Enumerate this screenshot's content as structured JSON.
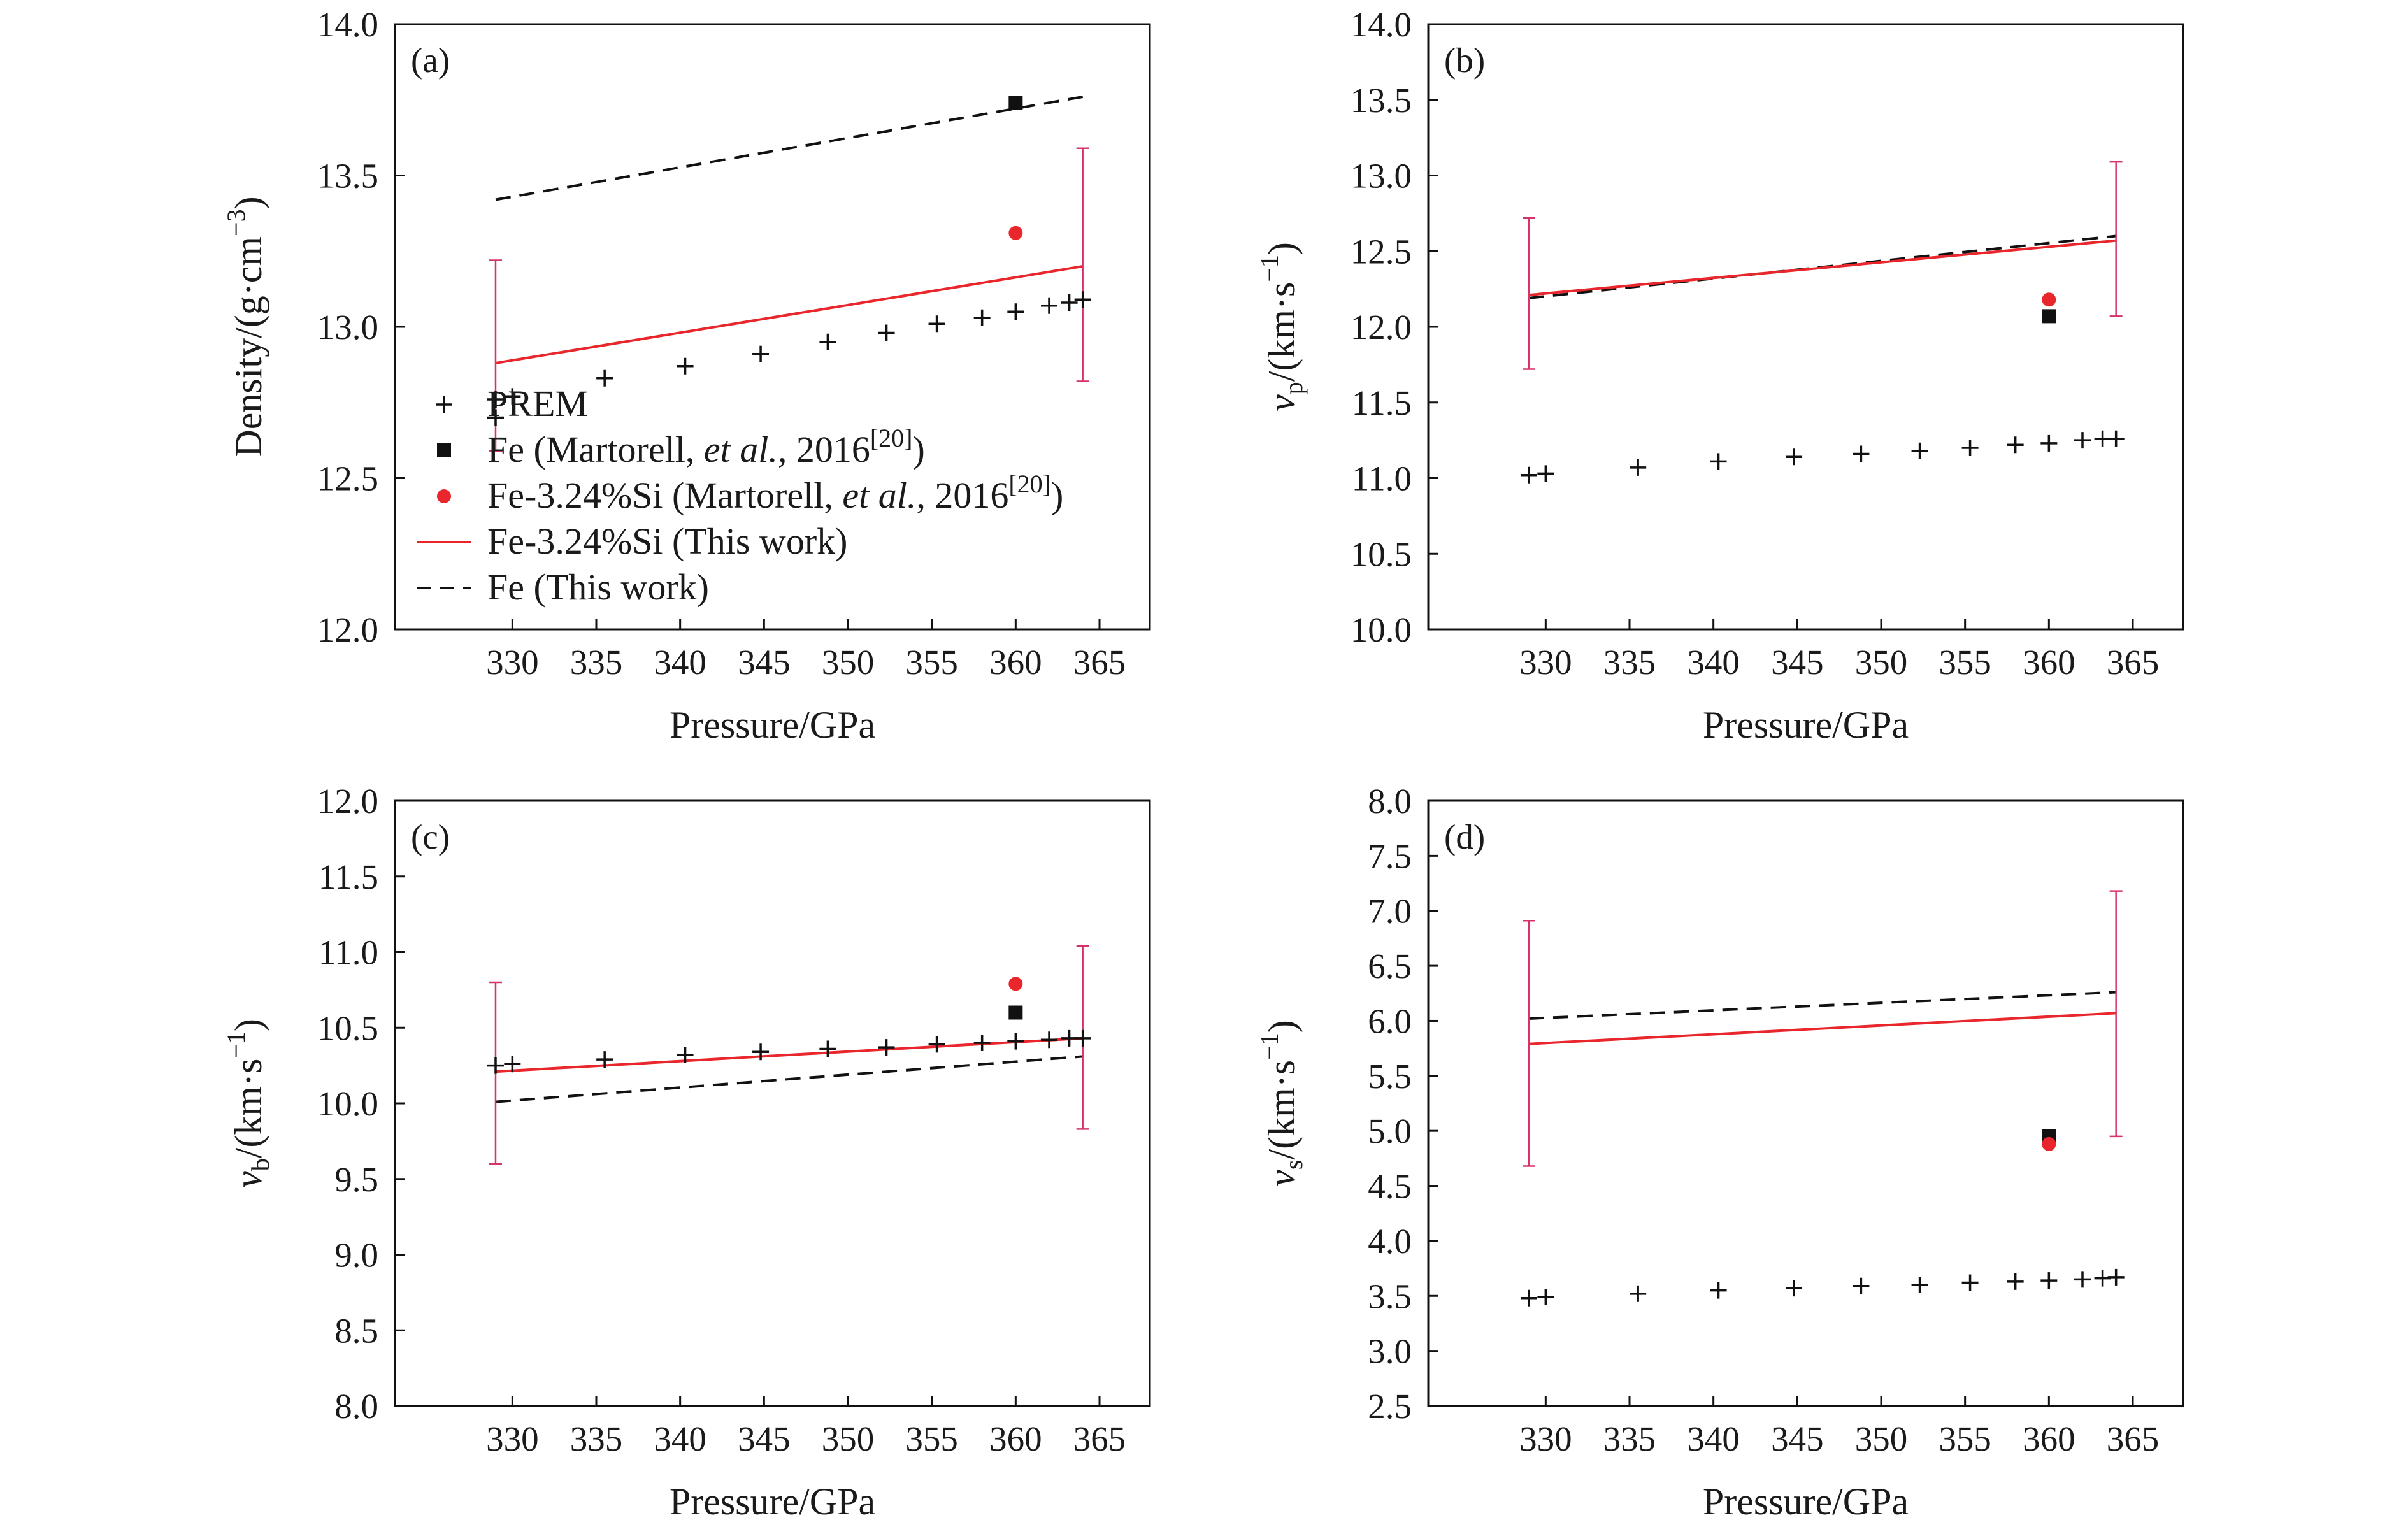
{
  "colors": {
    "red": "#e8262b",
    "black": "#111111",
    "errorbar": "#d6336c"
  },
  "legend": {
    "items": [
      {
        "key": "prem",
        "marker": "plus",
        "text": "PREM"
      },
      {
        "key": "fe_m",
        "marker": "square",
        "pre": "Fe (Martorell, ",
        "italic": "et al.",
        "post": ", 2016",
        "sup": "[20]",
        "tail": ")"
      },
      {
        "key": "fesi_m",
        "marker": "circle",
        "pre": "Fe-3.24%Si (Martorell, ",
        "italic": "et al.",
        "post": ", 2016",
        "sup": "[20]",
        "tail": ")"
      },
      {
        "key": "fesi_tw",
        "marker": "red-line",
        "text": "Fe-3.24%Si (This work)"
      },
      {
        "key": "fe_tw",
        "marker": "black-dash",
        "text": "Fe (This work)"
      }
    ]
  },
  "chart_data": [
    {
      "id": "a",
      "panel_label": "(a)",
      "type": "line",
      "xlabel": "Pressure/GPa",
      "ylabel": {
        "main": "Density/(g·cm",
        "sup": "−3",
        "close": ")"
      },
      "xlim": [
        323,
        368
      ],
      "ylim": [
        12.0,
        14.0
      ],
      "xticks": [
        330,
        335,
        340,
        345,
        350,
        355,
        360,
        365
      ],
      "yticks": [
        "12.0",
        "12.5",
        "13.0",
        "13.5",
        "14.0"
      ],
      "prem": {
        "x": [
          329,
          330,
          335.5,
          340.3,
          344.8,
          348.8,
          352.3,
          355.3,
          358,
          360,
          362,
          363.2,
          364
        ],
        "y": [
          12.76,
          12.77,
          12.83,
          12.87,
          12.91,
          12.95,
          12.98,
          13.01,
          13.03,
          13.05,
          13.07,
          13.08,
          13.09
        ]
      },
      "prem_extra": {
        "x": [
          329
        ],
        "y": [
          12.7
        ]
      },
      "fe_martorell": {
        "x": 360,
        "y": 13.74
      },
      "fesi_martorell": {
        "x": 360,
        "y": 13.31
      },
      "fesi_thiswork": {
        "x": [
          329,
          364
        ],
        "y": [
          12.88,
          13.2
        ]
      },
      "fe_thiswork": {
        "x": [
          329,
          364
        ],
        "y": [
          13.42,
          13.76
        ]
      },
      "errorbars": [
        {
          "x": 329,
          "low": 12.59,
          "high": 13.22
        },
        {
          "x": 364,
          "low": 12.82,
          "high": 13.59
        }
      ]
    },
    {
      "id": "b",
      "panel_label": "(b)",
      "type": "line",
      "xlabel": "Pressure/GPa",
      "ylabel": {
        "sym": "v",
        "sub": "p",
        "main": "/(km·s",
        "sup": "−1",
        "close": ")"
      },
      "xlim": [
        323,
        368
      ],
      "ylim": [
        10.0,
        14.0
      ],
      "xticks": [
        330,
        335,
        340,
        345,
        350,
        355,
        360,
        365
      ],
      "yticks": [
        "10.0",
        "10.5",
        "11.0",
        "11.5",
        "12.0",
        "12.5",
        "13.0",
        "13.5",
        "14.0"
      ],
      "prem": {
        "x": [
          329,
          330,
          335.5,
          340.3,
          344.8,
          348.8,
          352.3,
          355.3,
          358,
          360,
          362,
          363.2,
          364
        ],
        "y": [
          11.02,
          11.03,
          11.07,
          11.11,
          11.14,
          11.16,
          11.18,
          11.2,
          11.22,
          11.23,
          11.25,
          11.26,
          11.26
        ]
      },
      "fe_martorell": {
        "x": 360,
        "y": 12.07
      },
      "fesi_martorell": {
        "x": 360,
        "y": 12.18
      },
      "fesi_thiswork": {
        "x": [
          329,
          364
        ],
        "y": [
          12.21,
          12.57
        ]
      },
      "fe_thiswork": {
        "x": [
          329,
          364
        ],
        "y": [
          12.19,
          12.6
        ]
      },
      "errorbars": [
        {
          "x": 329,
          "low": 11.72,
          "high": 12.72
        },
        {
          "x": 364,
          "low": 12.07,
          "high": 13.09
        }
      ]
    },
    {
      "id": "c",
      "panel_label": "(c)",
      "type": "line",
      "xlabel": "Pressure/GPa",
      "ylabel": {
        "sym": "v",
        "sub": "b",
        "main": "/(km·s",
        "sup": "−1",
        "close": ")"
      },
      "xlim": [
        323,
        368
      ],
      "ylim": [
        8.0,
        12.0
      ],
      "xticks": [
        330,
        335,
        340,
        345,
        350,
        355,
        360,
        365
      ],
      "yticks": [
        "8.0",
        "8.5",
        "9.0",
        "9.5",
        "10.0",
        "10.5",
        "11.0",
        "11.5",
        "12.0"
      ],
      "prem": {
        "x": [
          329,
          330,
          335.5,
          340.3,
          344.8,
          348.8,
          352.3,
          355.3,
          358,
          360,
          362,
          363.2,
          364
        ],
        "y": [
          10.25,
          10.26,
          10.29,
          10.32,
          10.34,
          10.36,
          10.37,
          10.39,
          10.4,
          10.41,
          10.42,
          10.43,
          10.43
        ]
      },
      "fe_martorell": {
        "x": 360,
        "y": 10.6
      },
      "fesi_martorell": {
        "x": 360,
        "y": 10.79
      },
      "fesi_thiswork": {
        "x": [
          329,
          364
        ],
        "y": [
          10.21,
          10.43
        ]
      },
      "fe_thiswork": {
        "x": [
          329,
          364
        ],
        "y": [
          10.01,
          10.31
        ]
      },
      "errorbars": [
        {
          "x": 329,
          "low": 9.6,
          "high": 10.8
        },
        {
          "x": 364,
          "low": 9.83,
          "high": 11.04
        }
      ]
    },
    {
      "id": "d",
      "panel_label": "(d)",
      "type": "line",
      "xlabel": "Pressure/GPa",
      "ylabel": {
        "sym": "v",
        "sub": "s",
        "main": "/(km·s",
        "sup": "−1",
        "close": ")"
      },
      "xlim": [
        323,
        368
      ],
      "ylim": [
        2.5,
        8.0
      ],
      "xticks": [
        330,
        335,
        340,
        345,
        350,
        355,
        360,
        365
      ],
      "yticks": [
        "2.5",
        "3.0",
        "3.5",
        "4.0",
        "4.5",
        "5.0",
        "5.5",
        "6.0",
        "6.5",
        "7.0",
        "7.5",
        "8.0"
      ],
      "prem": {
        "x": [
          329,
          330,
          335.5,
          340.3,
          344.8,
          348.8,
          352.3,
          355.3,
          358,
          360,
          362,
          363.2,
          364
        ],
        "y": [
          3.48,
          3.49,
          3.52,
          3.55,
          3.57,
          3.59,
          3.6,
          3.62,
          3.63,
          3.64,
          3.65,
          3.66,
          3.67
        ]
      },
      "fe_martorell": {
        "x": 360,
        "y": 4.95
      },
      "fesi_martorell": {
        "x": 360,
        "y": 4.88
      },
      "fesi_thiswork": {
        "x": [
          329,
          364
        ],
        "y": [
          5.79,
          6.07
        ]
      },
      "fe_thiswork": {
        "x": [
          329,
          364
        ],
        "y": [
          6.02,
          6.26
        ]
      },
      "errorbars": [
        {
          "x": 329,
          "low": 4.68,
          "high": 6.91
        },
        {
          "x": 364,
          "low": 4.95,
          "high": 7.18
        }
      ]
    }
  ]
}
